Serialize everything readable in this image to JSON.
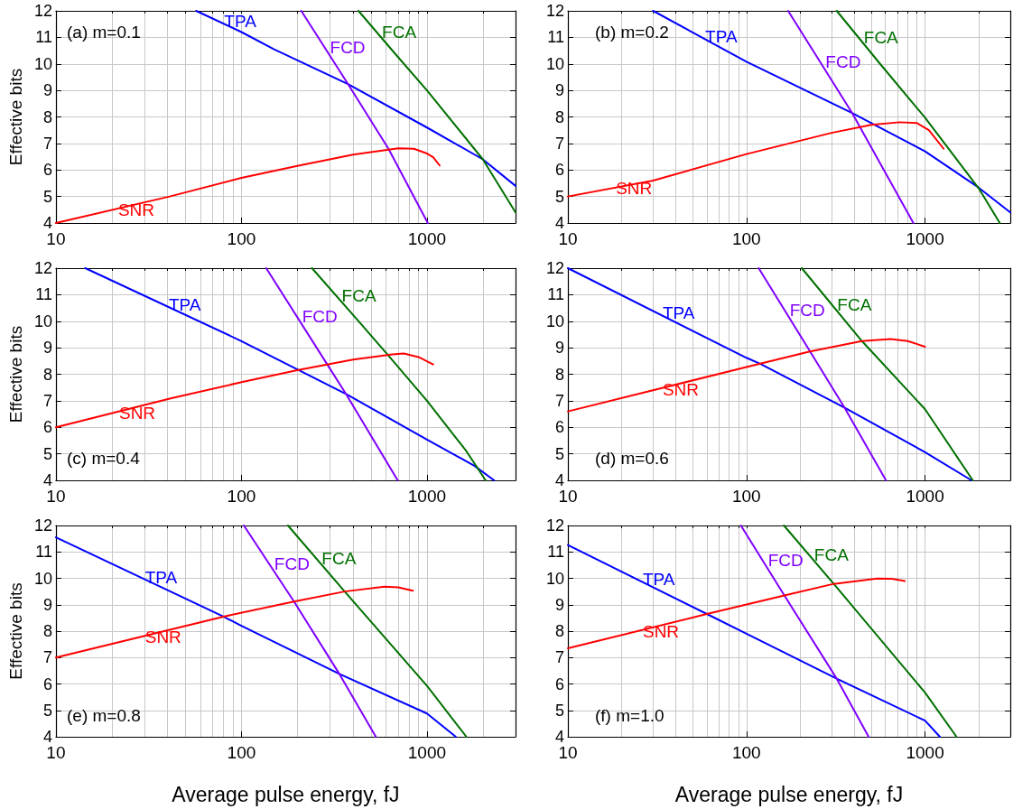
{
  "chart_data": [
    {
      "type": "line",
      "annotations": [
        "(a) m=0.1"
      ],
      "ylabel": "Effective bits",
      "xlim": [
        10,
        3000
      ],
      "xticks": [
        10,
        100,
        1000
      ],
      "ylim": [
        4,
        12
      ],
      "yticks": [
        4,
        5,
        6,
        7,
        8,
        9,
        10,
        11,
        12
      ],
      "log": "x",
      "grid": true,
      "series": [
        {
          "name": "TPA",
          "color": "#0000ff",
          "x": [
            57,
            100,
            150,
            375,
            1000,
            2000,
            3000
          ],
          "values": [
            12,
            11.2,
            10.55,
            9.24,
            7.6,
            6.4,
            5.4
          ]
        },
        {
          "name": "FCD",
          "color": "#8000ff",
          "x": [
            210,
            375,
            620,
            1010
          ],
          "values": [
            12,
            9.24,
            6.8,
            4
          ]
        },
        {
          "name": "FCA",
          "color": "#007000",
          "x": [
            427,
            670,
            1000,
            2000,
            3000
          ],
          "values": [
            12,
            10.4,
            9.0,
            6.4,
            4.4
          ]
        },
        {
          "name": "SNR",
          "color": "#ff0000",
          "x": [
            10,
            41,
            100,
            200,
            400,
            700,
            850,
            1000,
            1080,
            1170
          ],
          "values": [
            4,
            5.0,
            5.7,
            6.15,
            6.58,
            6.82,
            6.8,
            6.62,
            6.48,
            6.17
          ]
        }
      ]
    },
    {
      "type": "line",
      "annotations": [
        "(b) m=0.2"
      ],
      "xlim": [
        10,
        3000
      ],
      "xticks": [
        10,
        100,
        1000
      ],
      "ylim": [
        4,
        12
      ],
      "yticks": [
        4,
        5,
        6,
        7,
        8,
        9,
        10,
        11,
        12
      ],
      "log": "x",
      "grid": true,
      "series": [
        {
          "name": "TPA",
          "color": "#0000ff",
          "x": [
            30,
            100,
            390,
            1000,
            2000,
            3000
          ],
          "values": [
            12,
            10.08,
            8.15,
            6.7,
            5.33,
            4.4
          ]
        },
        {
          "name": "FCD",
          "color": "#8000ff",
          "x": [
            171,
            390,
            860
          ],
          "values": [
            12,
            8.15,
            4
          ]
        },
        {
          "name": "FCA",
          "color": "#007000",
          "x": [
            320,
            560,
            1000,
            2000,
            2620
          ],
          "values": [
            12,
            10.0,
            7.97,
            5.3,
            4
          ]
        },
        {
          "name": "SNR",
          "color": "#ff0000",
          "x": [
            10,
            30,
            100,
            300,
            500,
            720,
            900,
            1050,
            1270
          ],
          "values": [
            5,
            5.6,
            6.6,
            7.4,
            7.7,
            7.8,
            7.77,
            7.5,
            6.8
          ]
        }
      ]
    },
    {
      "type": "line",
      "annotations": [
        "(c) m=0.4"
      ],
      "ylabel": "Effective bits",
      "xlim": [
        10,
        3000
      ],
      "xticks": [
        10,
        100,
        1000
      ],
      "ylim": [
        4,
        12
      ],
      "yticks": [
        4,
        5,
        6,
        7,
        8,
        9,
        10,
        11,
        12
      ],
      "log": "x",
      "grid": true,
      "series": [
        {
          "name": "TPA",
          "color": "#0000ff",
          "x": [
            14.4,
            100,
            200,
            370,
            1000,
            1800,
            2300
          ],
          "values": [
            12,
            9.25,
            8.18,
            7.24,
            5.54,
            4.55,
            4
          ]
        },
        {
          "name": "FCD",
          "color": "#8000ff",
          "x": [
            136,
            290,
            367,
            695
          ],
          "values": [
            12,
            8.37,
            7.24,
            4
          ]
        },
        {
          "name": "FCA",
          "color": "#007000",
          "x": [
            240,
            440,
            620,
            1000,
            1630,
            2070
          ],
          "values": [
            12,
            9.9,
            8.7,
            7.0,
            5.1,
            4
          ]
        },
        {
          "name": "SNR",
          "color": "#ff0000",
          "x": [
            10,
            42,
            100,
            200,
            400,
            650,
            750,
            900,
            1080
          ],
          "values": [
            6,
            7.1,
            7.7,
            8.15,
            8.55,
            8.75,
            8.78,
            8.65,
            8.37
          ]
        }
      ]
    },
    {
      "type": "line",
      "annotations": [
        "(d) m=0.6"
      ],
      "xlim": [
        10,
        3000
      ],
      "xticks": [
        10,
        100,
        1000
      ],
      "ylim": [
        4,
        12
      ],
      "yticks": [
        4,
        5,
        6,
        7,
        8,
        9,
        10,
        11,
        12
      ],
      "log": "x",
      "grid": true,
      "series": [
        {
          "name": "TPA",
          "color": "#0000ff",
          "x": [
            10,
            100,
            120,
            355,
            1000,
            1820
          ],
          "values": [
            12,
            8.62,
            8.39,
            6.74,
            5.06,
            4
          ]
        },
        {
          "name": "FCD",
          "color": "#8000ff",
          "x": [
            117,
            227,
            354,
            604
          ],
          "values": [
            12,
            8.86,
            6.74,
            4
          ]
        },
        {
          "name": "FCA",
          "color": "#007000",
          "x": [
            204,
            443,
            1000,
            1850
          ],
          "values": [
            12,
            9.25,
            6.68,
            4
          ]
        },
        {
          "name": "SNR",
          "color": "#ff0000",
          "x": [
            10,
            100,
            227,
            443,
            640,
            800,
            1000
          ],
          "values": [
            6.6,
            8.27,
            8.86,
            9.25,
            9.33,
            9.25,
            9.04
          ]
        }
      ]
    },
    {
      "type": "line",
      "annotations": [
        "(e) m=0.8"
      ],
      "xlabel": "Average pulse energy, fJ",
      "ylabel": "Effective bits",
      "xlim": [
        10,
        3000
      ],
      "xticks": [
        10,
        100,
        1000
      ],
      "ylim": [
        4,
        12
      ],
      "yticks": [
        4,
        5,
        6,
        7,
        8,
        9,
        10,
        11,
        12
      ],
      "log": "x",
      "grid": true,
      "series": [
        {
          "name": "TPA",
          "color": "#0000ff",
          "x": [
            10,
            80,
            100,
            337,
            1000,
            1430
          ],
          "values": [
            11.55,
            8.55,
            8.2,
            6.38,
            4.88,
            4
          ]
        },
        {
          "name": "FCD",
          "color": "#8000ff",
          "x": [
            103,
            192,
            337,
            530
          ],
          "values": [
            12,
            9.12,
            6.38,
            4
          ]
        },
        {
          "name": "FCA",
          "color": "#007000",
          "x": [
            178,
            360,
            1000,
            1630
          ],
          "values": [
            12,
            9.5,
            5.93,
            4
          ]
        },
        {
          "name": "SNR",
          "color": "#ff0000",
          "x": [
            10,
            80,
            192,
            360,
            590,
            700,
            840
          ],
          "values": [
            7.0,
            8.55,
            9.12,
            9.5,
            9.68,
            9.66,
            9.53
          ]
        }
      ]
    },
    {
      "type": "line",
      "annotations": [
        "(f) m=1.0"
      ],
      "xlabel": "Average pulse energy, fJ",
      "xlim": [
        10,
        3000
      ],
      "xticks": [
        10,
        100,
        1000
      ],
      "ylim": [
        4,
        12
      ],
      "yticks": [
        4,
        5,
        6,
        7,
        8,
        9,
        10,
        11,
        12
      ],
      "log": "x",
      "grid": true,
      "series": [
        {
          "name": "TPA",
          "color": "#0000ff",
          "x": [
            10,
            60,
            100,
            320,
            1000,
            1210
          ],
          "values": [
            11.26,
            8.65,
            7.9,
            6.2,
            4.61,
            4
          ]
        },
        {
          "name": "FCD",
          "color": "#8000ff",
          "x": [
            93,
            163,
            320,
            483
          ],
          "values": [
            12,
            9.35,
            6.2,
            4
          ]
        },
        {
          "name": "FCA",
          "color": "#007000",
          "x": [
            162,
            308,
            1000,
            1500
          ],
          "values": [
            12,
            9.79,
            5.67,
            4
          ]
        },
        {
          "name": "SNR",
          "color": "#ff0000",
          "x": [
            10,
            60,
            163,
            308,
            540,
            650,
            770
          ],
          "values": [
            7.35,
            8.65,
            9.35,
            9.79,
            9.99,
            9.98,
            9.9
          ]
        }
      ]
    }
  ]
}
